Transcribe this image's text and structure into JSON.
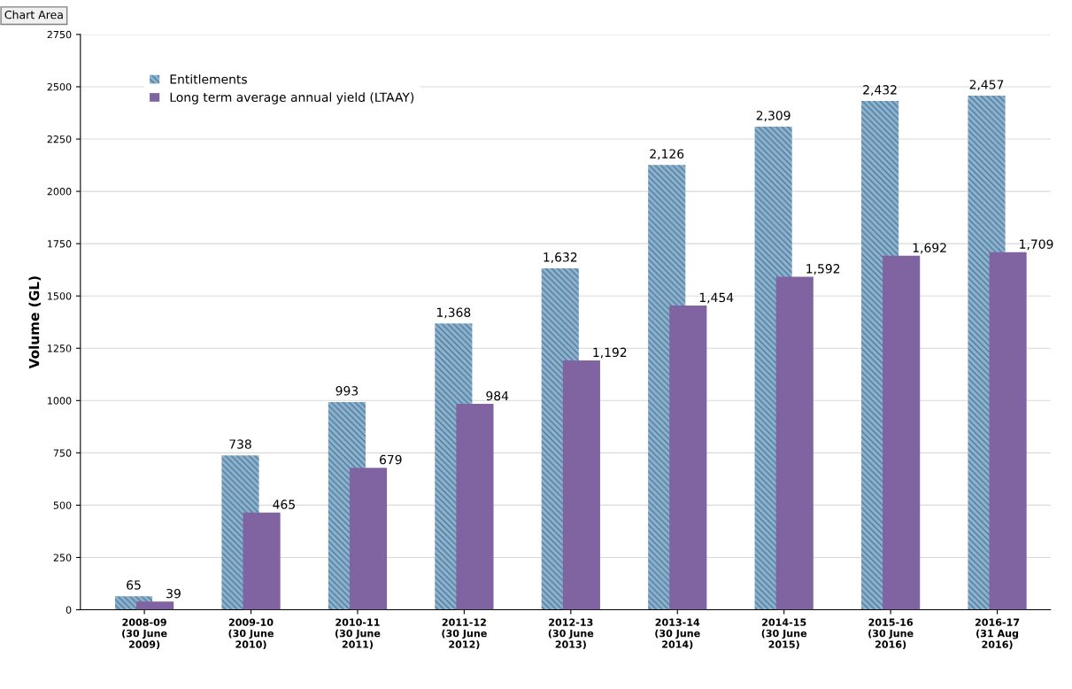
{
  "chart_data": {
    "type": "bar",
    "ylabel": "Volume (GL)",
    "annotations": [
      "Chart Area"
    ],
    "categories": [
      "2008-09\n(30 June\n2009)",
      "2009-10\n(30 June\n2010)",
      "2010-11\n(30 June\n2011)",
      "2011-12\n(30 June\n2012)",
      "2012-13\n(30 June\n2013)",
      "2013-14\n(30 June\n2014)",
      "2014-15\n(30 June\n2015)",
      "2015-16\n(30 June\n2016)",
      "2016-17\n(31 Aug\n2016)"
    ],
    "series": [
      {
        "name": "Entitlements",
        "color": "#8fb2cc",
        "values": [
          65,
          738,
          993,
          1368,
          1632,
          2126,
          2309,
          2432,
          2457
        ],
        "value_labels": [
          "65",
          "738",
          "993",
          "1,368",
          "1,632",
          "2,126",
          "2,309",
          "2,432",
          "2,457"
        ]
      },
      {
        "name": "Long term average annual yield (LTAAY)",
        "color": "#8064a2",
        "values": [
          39,
          465,
          679,
          984,
          1192,
          1454,
          1592,
          1692,
          1709
        ],
        "value_labels": [
          "39",
          "465",
          "679",
          "984",
          "1,192",
          "1,454",
          "1,592",
          "1,692",
          "1,709"
        ]
      }
    ],
    "ylim": [
      0,
      2750
    ],
    "yticks": [
      0,
      250,
      500,
      750,
      1000,
      1250,
      1500,
      1750,
      2000,
      2250,
      2500,
      2750
    ],
    "grid": "y",
    "legend": "top left"
  }
}
